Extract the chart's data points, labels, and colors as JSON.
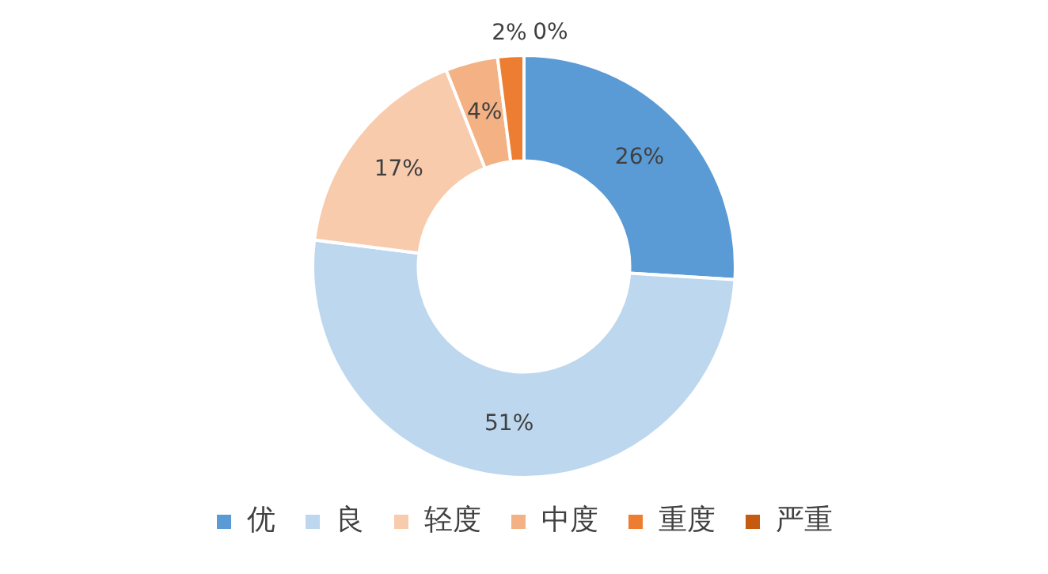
{
  "chart_data": {
    "type": "donut",
    "categories": [
      "优",
      "良",
      "轻度",
      "中度",
      "重度",
      "严重"
    ],
    "values": [
      26,
      51,
      17,
      4,
      2,
      0
    ],
    "value_labels": [
      "26%",
      "51%",
      "17%",
      "4%",
      "2%",
      "0%"
    ],
    "colors": [
      "#5b9bd5",
      "#bdd7ee",
      "#f8cbad",
      "#f4b183",
      "#ed7d31",
      "#c55a11"
    ],
    "legend": "bottom"
  }
}
